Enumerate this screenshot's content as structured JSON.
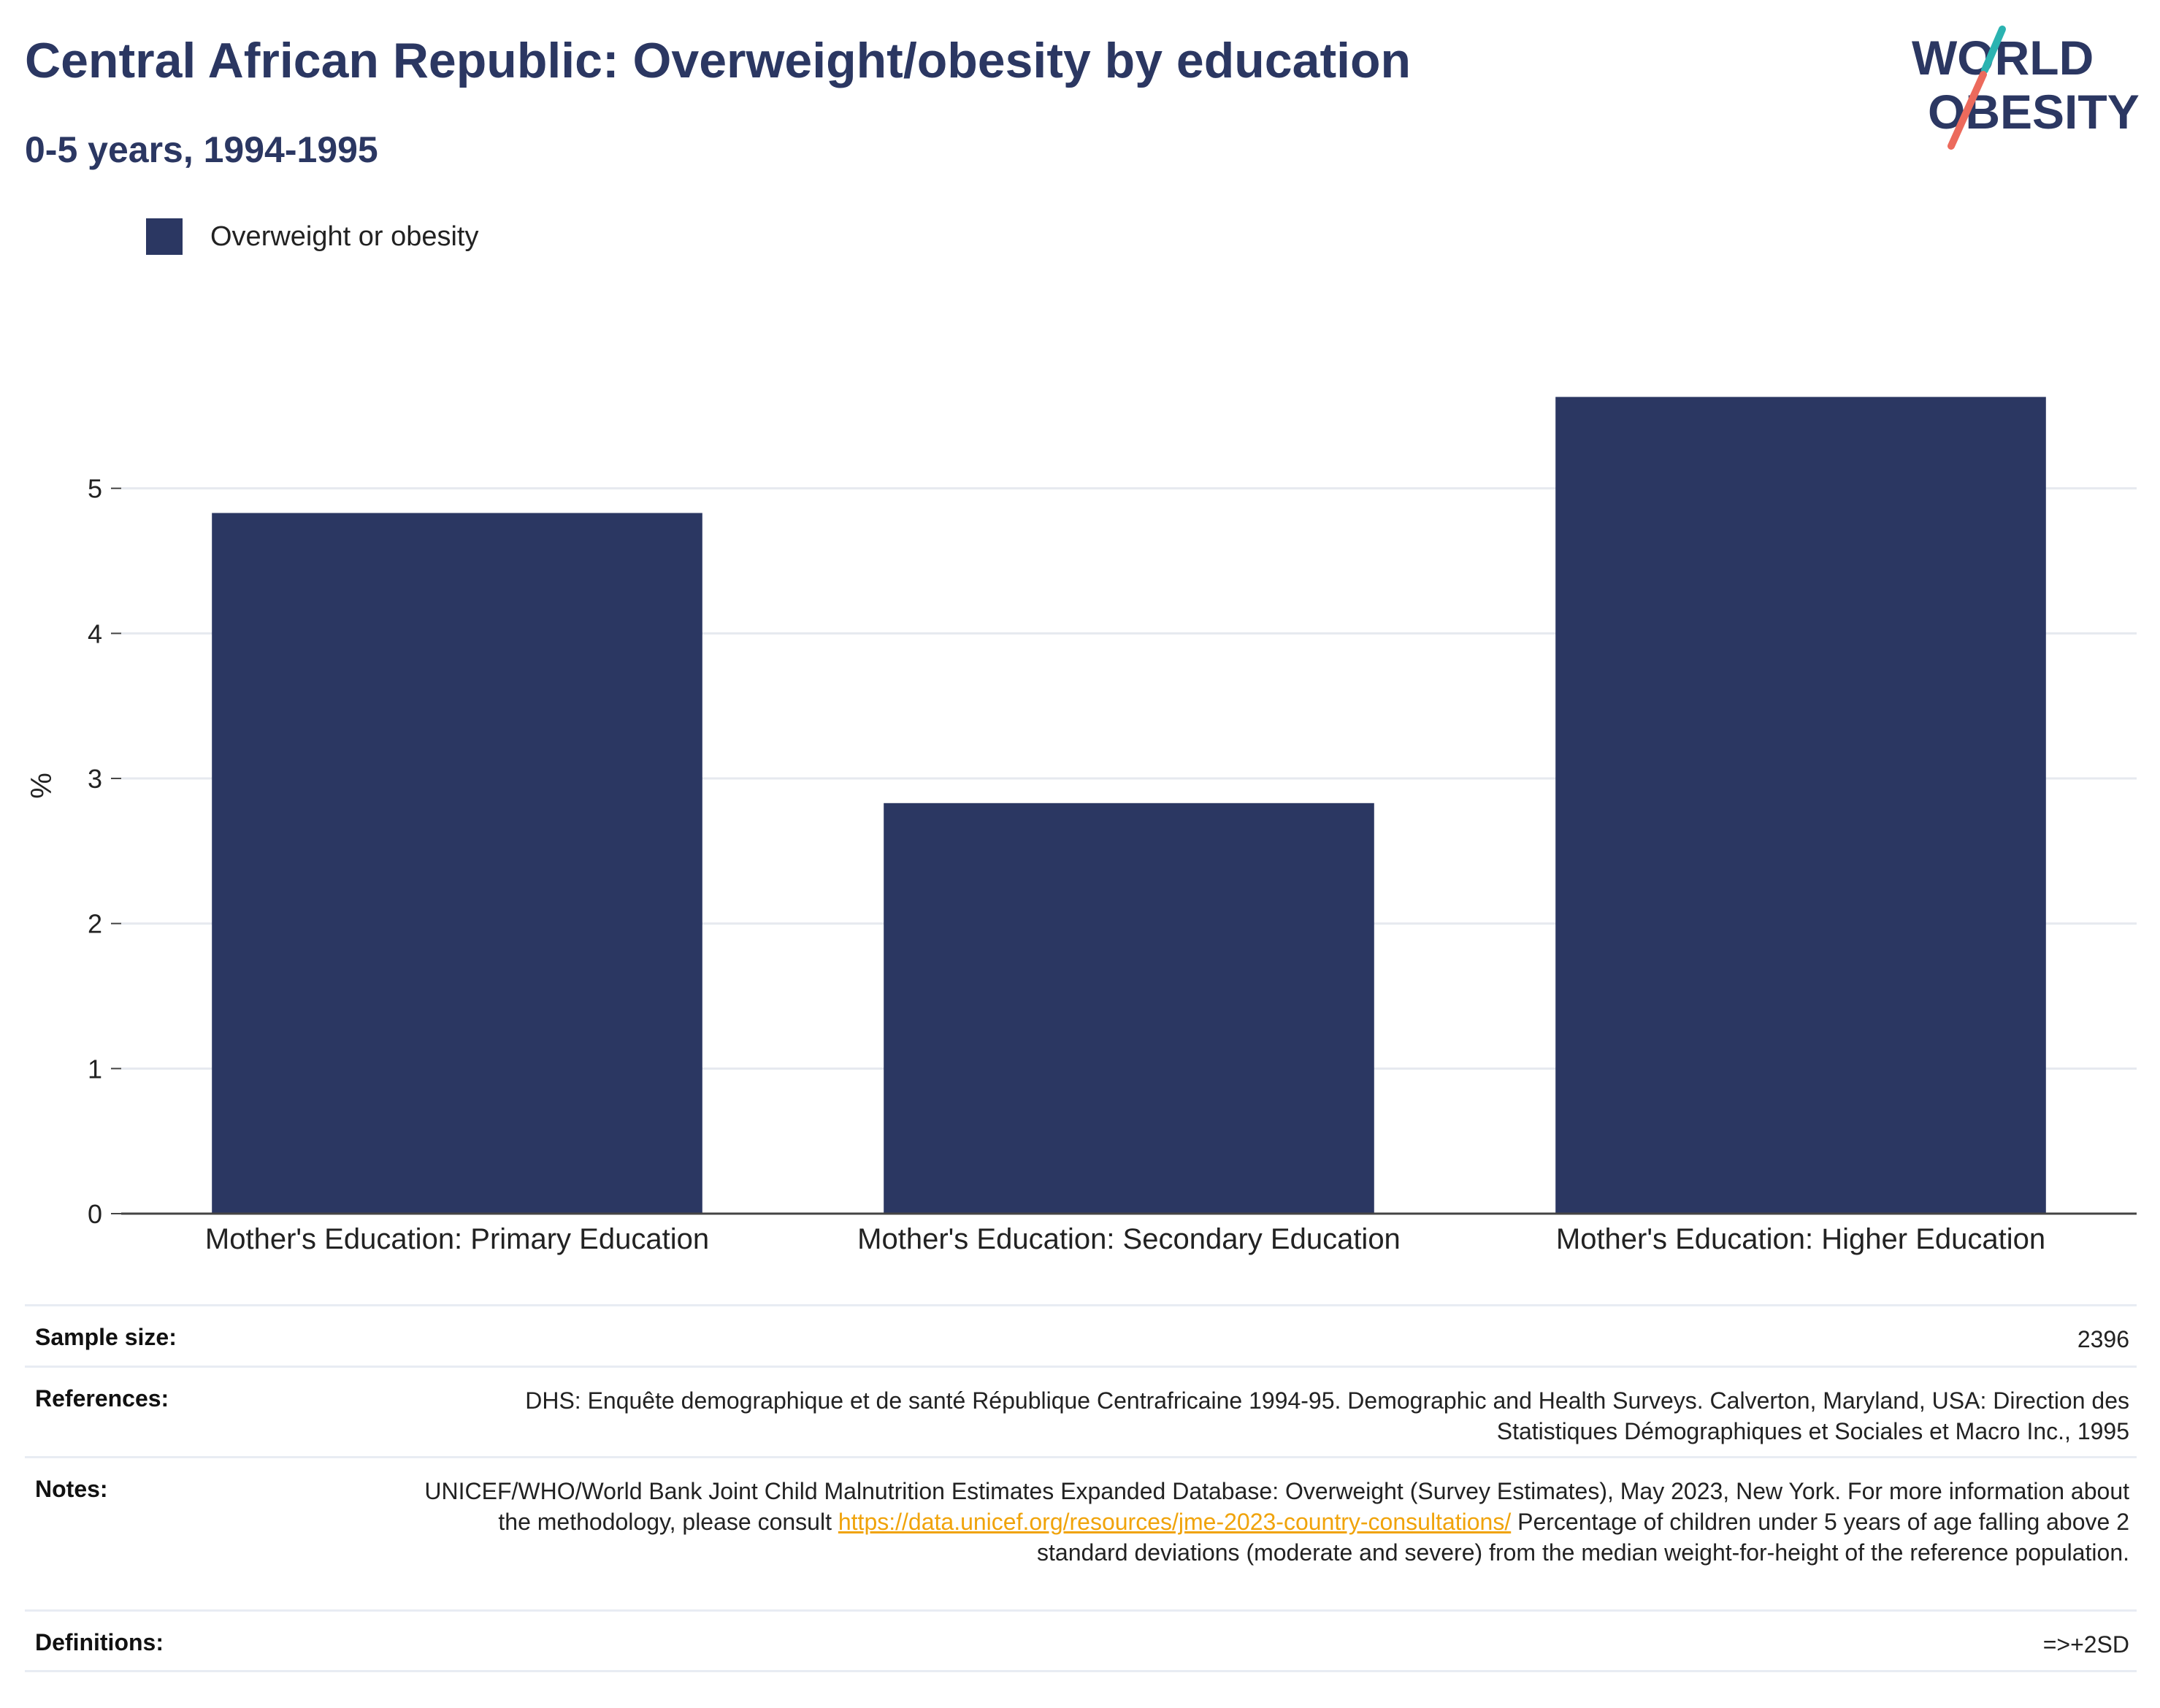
{
  "header": {
    "title": "Central African Republic: Overweight/obesity by education",
    "subtitle": "0-5 years, 1994-1995"
  },
  "logo": {
    "line1": "WORLD",
    "line2": "OBESITY"
  },
  "legend": {
    "label": "Overweight or obesity",
    "color": "#2b3762"
  },
  "chart_data": {
    "type": "bar",
    "categories": [
      "Mother's Education: Primary Education",
      "Mother's Education: Secondary Education",
      "Mother's Education: Higher Education"
    ],
    "series": [
      {
        "name": "Overweight or obesity",
        "values": [
          4.83,
          2.83,
          5.63
        ],
        "color": "#2b3762"
      }
    ],
    "ylabel": "%",
    "yticks": [
      0,
      1,
      2,
      3,
      4,
      5
    ],
    "ylim": [
      0,
      5.95
    ],
    "grid": true
  },
  "info": {
    "sample_size": {
      "label": "Sample size:",
      "value": "2396"
    },
    "references": {
      "label": "References:",
      "value": "DHS: Enquête demographique et de santé République Centrafricaine 1994-95. Demographic and Health Surveys. Calverton, Maryland, USA: Direction des Statistiques Démographiques et Sociales et Macro Inc., 1995"
    },
    "notes": {
      "label": "Notes:",
      "text_before": "UNICEF/WHO/World Bank Joint Child Malnutrition Estimates Expanded Database: Overweight (Survey Estimates), May 2023, New York. For more information about the methodology, please consult ",
      "link": "https://data.unicef.org/resources/jme-2023-country-consultations/",
      "text_after": " Percentage of children under 5 years of age falling above 2 standard deviations (moderate and severe) from the median weight-for-height of the reference population."
    },
    "definitions": {
      "label": "Definitions:",
      "value": "=>+2SD"
    }
  }
}
